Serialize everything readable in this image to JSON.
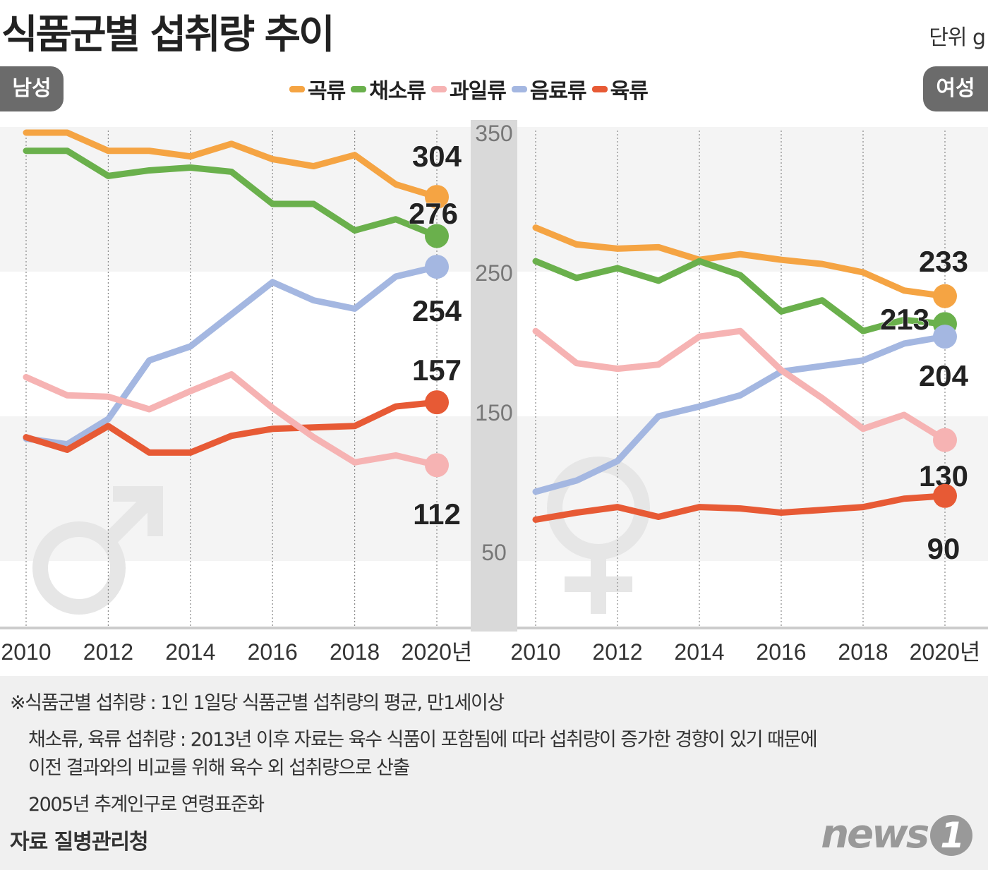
{
  "title": "식품군별 섭취량 추이",
  "unit": "단위 g",
  "panels": {
    "male": "남성",
    "female": "여성"
  },
  "colors": {
    "곡류": "#f5a443",
    "채소류": "#6ab04c",
    "과일류": "#f6b3b3",
    "음료류": "#a4b7e1",
    "육류": "#e75a35"
  },
  "notes": [
    "※식품군별 섭취량 : 1인 1일당 식품군별 섭취량의 평균, 만1세이상",
    "채소류, 육류 섭취량 : 2013년 이후 자료는 육수 식품이 포함됨에 따라 섭취량이 증가한 경향이 있기 때문에",
    "이전 결과와의 비교를 위해 육수 외 섭취량으로 산출",
    "2005년 추계인구로 연령표준화"
  ],
  "source": "자료 질병관리청",
  "logo": "news1",
  "chart_data": {
    "type": "line",
    "legend": [
      "곡류",
      "채소류",
      "과일류",
      "음료류",
      "육류"
    ],
    "legend_position": "top-center",
    "x": [
      2010,
      2011,
      2012,
      2013,
      2014,
      2015,
      2016,
      2017,
      2018,
      2019,
      2020
    ],
    "x_tick_labels": [
      "2010",
      "2012",
      "2014",
      "2016",
      "2018",
      "2020년"
    ],
    "y_ticks": [
      50,
      150,
      250,
      350
    ],
    "ylim": [
      0,
      350
    ],
    "grid": "vertical dotted lines every 2 years, alternating horizontal bands",
    "panels": [
      {
        "name": "남성",
        "series": [
          {
            "name": "곡류",
            "values": [
              350,
              350,
              337,
              337,
              333,
              342,
              331,
              326,
              334,
              313,
              304
            ],
            "end_label": "304"
          },
          {
            "name": "채소류",
            "values": [
              337,
              337,
              319,
              323,
              325,
              322,
              299,
              299,
              280,
              288,
              276
            ],
            "end_label": "276"
          },
          {
            "name": "음료류",
            "values": [
              131,
              127,
              145,
              187,
              197,
              220,
              243,
              230,
              224,
              247,
              254
            ],
            "end_label": "254"
          },
          {
            "name": "육류",
            "values": [
              132,
              123,
              140,
              121,
              121,
              133,
              138,
              139,
              140,
              154,
              157
            ],
            "end_label": "157"
          },
          {
            "name": "과일류",
            "values": [
              175,
              162,
              161,
              152,
              165,
              177,
              153,
              132,
              114,
              119,
              112
            ],
            "end_label": "112"
          }
        ]
      },
      {
        "name": "여성",
        "series": [
          {
            "name": "곡류",
            "values": [
              282,
              270,
              267,
              268,
              259,
              263,
              259,
              256,
              250,
              237,
              233
            ],
            "end_label": "233"
          },
          {
            "name": "채소류",
            "values": [
              258,
              246,
              253,
              244,
              258,
              248,
              222,
              230,
              208,
              216,
              213
            ],
            "end_label": "213"
          },
          {
            "name": "음료류",
            "values": [
              93,
              101,
              115,
              147,
              154,
              162,
              179,
              183,
              187,
              199,
              204
            ],
            "end_label": "204"
          },
          {
            "name": "과일류",
            "values": [
              208,
              185,
              181,
              184,
              204,
              208,
              180,
              160,
              138,
              148,
              130
            ],
            "end_label": "130"
          },
          {
            "name": "육류",
            "values": [
              73,
              78,
              82,
              75,
              82,
              81,
              78,
              80,
              82,
              88,
              90
            ],
            "end_label": "90"
          }
        ]
      }
    ]
  }
}
